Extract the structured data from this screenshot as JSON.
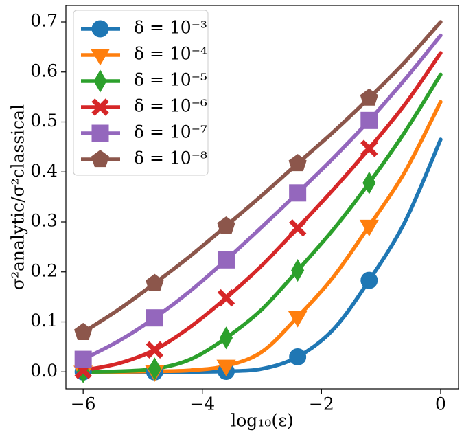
{
  "chart_data": {
    "type": "line",
    "x_label": "log₁₀(ε)",
    "y_label": "σ²analytic/σ²classical",
    "x": [
      -6,
      -5.4,
      -4.8,
      -4.2,
      -3.6,
      -3,
      -2.4,
      -1.8,
      -1.2,
      -0.6,
      0
    ],
    "marker_x": [
      -6,
      -4.8,
      -3.6,
      -2.4,
      -1.2
    ],
    "series": [
      {
        "name": "δ = 10⁻³",
        "color": "#1f77b4",
        "marker": "circle",
        "values": [
          0,
          0,
          0,
          0,
          0.001,
          0.006,
          0.03,
          0.085,
          0.183,
          0.3,
          0.465
        ]
      },
      {
        "name": "δ = 10⁻⁴",
        "color": "#ff7f0e",
        "marker": "triangle-down",
        "values": [
          0,
          0,
          0.001,
          0.003,
          0.012,
          0.04,
          0.11,
          0.19,
          0.292,
          0.4,
          0.54
        ]
      },
      {
        "name": "δ = 10⁻⁵",
        "color": "#2ca02c",
        "marker": "thin-diamond",
        "values": [
          0,
          0.001,
          0.006,
          0.025,
          0.068,
          0.125,
          0.203,
          0.285,
          0.378,
          0.48,
          0.595
        ]
      },
      {
        "name": "δ = 10⁻⁶",
        "color": "#d62728",
        "marker": "x",
        "values": [
          0.003,
          0.017,
          0.044,
          0.09,
          0.148,
          0.213,
          0.288,
          0.365,
          0.447,
          0.535,
          0.638
        ]
      },
      {
        "name": "δ = 10⁻⁷",
        "color": "#9467bd",
        "marker": "square",
        "values": [
          0.025,
          0.062,
          0.108,
          0.162,
          0.224,
          0.29,
          0.358,
          0.428,
          0.503,
          0.585,
          0.673
        ]
      },
      {
        "name": "δ = 10⁻⁸",
        "color": "#8c564b",
        "marker": "pentagon",
        "values": [
          0.079,
          0.125,
          0.177,
          0.232,
          0.292,
          0.353,
          0.417,
          0.48,
          0.548,
          0.62,
          0.7
        ]
      }
    ],
    "xlim": [
      -6.29,
      0.3
    ],
    "ylim": [
      -0.034,
      0.733
    ],
    "xticks": [
      {
        "value": -6,
        "label": "−6"
      },
      {
        "value": -4,
        "label": "−4"
      },
      {
        "value": -2,
        "label": "−2"
      },
      0
    ],
    "yticks": [
      {
        "value": 0,
        "label": "0.0"
      },
      0.1,
      0.2,
      0.3,
      0.4,
      0.5,
      0.6,
      0.7
    ],
    "legend": "upper left"
  }
}
